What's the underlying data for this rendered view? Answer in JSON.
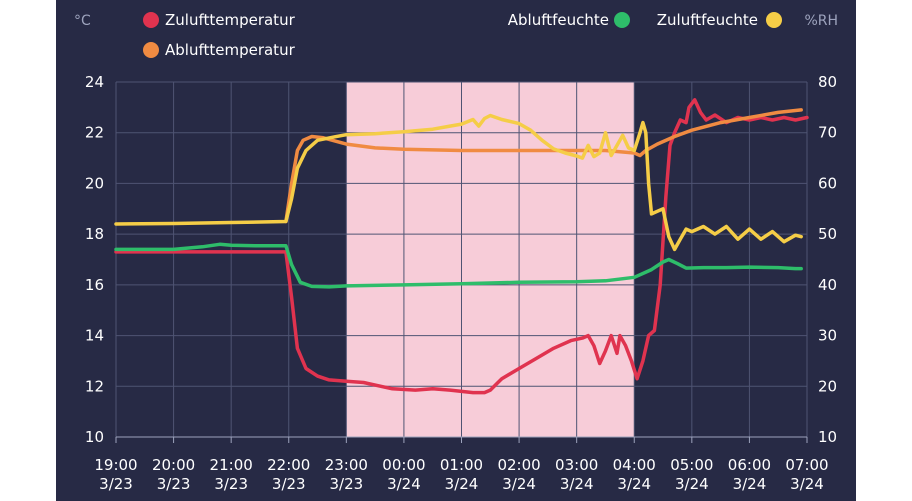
{
  "chart_data": {
    "type": "line",
    "y_left_unit": "°C",
    "y_right_unit": "%RH",
    "y_left_range": [
      10,
      24
    ],
    "y_left_ticks": [
      "10",
      "12",
      "14",
      "16",
      "18",
      "20",
      "22",
      "24"
    ],
    "y_right_range": [
      10,
      80
    ],
    "y_right_ticks": [
      "10",
      "20",
      "30",
      "40",
      "50",
      "60",
      "70",
      "80"
    ],
    "x_range_hours": [
      19,
      31
    ],
    "x_ticks": [
      {
        "time": "19:00",
        "date": "3/23"
      },
      {
        "time": "20:00",
        "date": "3/23"
      },
      {
        "time": "21:00",
        "date": "3/23"
      },
      {
        "time": "22:00",
        "date": "3/23"
      },
      {
        "time": "23:00",
        "date": "3/23"
      },
      {
        "time": "00:00",
        "date": "3/24"
      },
      {
        "time": "01:00",
        "date": "3/24"
      },
      {
        "time": "02:00",
        "date": "3/24"
      },
      {
        "time": "03:00",
        "date": "3/24"
      },
      {
        "time": "04:00",
        "date": "3/24"
      },
      {
        "time": "05:00",
        "date": "3/24"
      },
      {
        "time": "06:00",
        "date": "3/24"
      },
      {
        "time": "07:00",
        "date": "3/24"
      }
    ],
    "grid": true,
    "highlight_band": {
      "from": 23,
      "to": 28,
      "color": "#f7ccd8"
    },
    "series": [
      {
        "name": "Zulufttemperatur",
        "axis": "left",
        "color": "#e0334f",
        "points": [
          [
            19,
            17.3
          ],
          [
            20,
            17.3
          ],
          [
            21,
            17.3
          ],
          [
            21.95,
            17.3
          ],
          [
            22.05,
            15.5
          ],
          [
            22.15,
            13.5
          ],
          [
            22.3,
            12.7
          ],
          [
            22.5,
            12.4
          ],
          [
            22.7,
            12.25
          ],
          [
            23,
            12.2
          ],
          [
            23.3,
            12.15
          ],
          [
            23.6,
            12.0
          ],
          [
            23.8,
            11.9
          ],
          [
            24.2,
            11.85
          ],
          [
            24.5,
            11.9
          ],
          [
            24.8,
            11.85
          ],
          [
            25.0,
            11.8
          ],
          [
            25.2,
            11.75
          ],
          [
            25.4,
            11.75
          ],
          [
            25.5,
            11.85
          ],
          [
            25.7,
            12.3
          ],
          [
            26.0,
            12.7
          ],
          [
            26.3,
            13.1
          ],
          [
            26.6,
            13.5
          ],
          [
            26.9,
            13.8
          ],
          [
            27.1,
            13.9
          ],
          [
            27.2,
            14.0
          ],
          [
            27.3,
            13.6
          ],
          [
            27.4,
            12.9
          ],
          [
            27.5,
            13.4
          ],
          [
            27.6,
            14.0
          ],
          [
            27.7,
            13.3
          ],
          [
            27.75,
            14.0
          ],
          [
            27.85,
            13.6
          ],
          [
            27.95,
            13.0
          ],
          [
            28.05,
            12.3
          ],
          [
            28.15,
            13.0
          ],
          [
            28.25,
            14.0
          ],
          [
            28.35,
            14.2
          ],
          [
            28.45,
            16.0
          ],
          [
            28.55,
            19.5
          ],
          [
            28.62,
            21.5
          ],
          [
            28.7,
            22.0
          ],
          [
            28.8,
            22.5
          ],
          [
            28.9,
            22.4
          ],
          [
            28.95,
            23.0
          ],
          [
            29.05,
            23.3
          ],
          [
            29.15,
            22.8
          ],
          [
            29.25,
            22.5
          ],
          [
            29.4,
            22.7
          ],
          [
            29.6,
            22.4
          ],
          [
            29.8,
            22.6
          ],
          [
            30.0,
            22.5
          ],
          [
            30.2,
            22.6
          ],
          [
            30.4,
            22.5
          ],
          [
            30.6,
            22.6
          ],
          [
            30.8,
            22.5
          ],
          [
            31,
            22.6
          ]
        ]
      },
      {
        "name": "Ablufttemperatur",
        "axis": "left",
        "color": "#f08b42",
        "points": [
          [
            21.95,
            18.5
          ],
          [
            22.05,
            20.0
          ],
          [
            22.15,
            21.3
          ],
          [
            22.25,
            21.7
          ],
          [
            22.4,
            21.85
          ],
          [
            22.6,
            21.8
          ],
          [
            23.0,
            21.55
          ],
          [
            23.5,
            21.4
          ],
          [
            24.0,
            21.35
          ],
          [
            25.0,
            21.3
          ],
          [
            26.0,
            21.3
          ],
          [
            27.0,
            21.3
          ],
          [
            27.5,
            21.3
          ],
          [
            28.0,
            21.2
          ],
          [
            28.1,
            21.1
          ],
          [
            28.2,
            21.3
          ],
          [
            28.4,
            21.55
          ],
          [
            28.7,
            21.85
          ],
          [
            29.0,
            22.1
          ],
          [
            29.5,
            22.4
          ],
          [
            30.0,
            22.6
          ],
          [
            30.5,
            22.8
          ],
          [
            30.9,
            22.9
          ]
        ]
      },
      {
        "name": "Abluftfeuchte",
        "axis": "right",
        "color": "#2ebd6a",
        "points": [
          [
            19,
            47
          ],
          [
            20,
            47
          ],
          [
            20.5,
            47.5
          ],
          [
            20.8,
            48
          ],
          [
            21.0,
            47.8
          ],
          [
            21.5,
            47.7
          ],
          [
            21.95,
            47.7
          ],
          [
            22.05,
            44
          ],
          [
            22.2,
            40.5
          ],
          [
            22.4,
            39.7
          ],
          [
            22.7,
            39.6
          ],
          [
            23.0,
            39.8
          ],
          [
            24.0,
            40.0
          ],
          [
            25.0,
            40.2
          ],
          [
            26.0,
            40.5
          ],
          [
            27.0,
            40.6
          ],
          [
            27.5,
            40.8
          ],
          [
            28.0,
            41.5
          ],
          [
            28.3,
            43
          ],
          [
            28.5,
            44.5
          ],
          [
            28.6,
            45
          ],
          [
            28.75,
            44.2
          ],
          [
            28.9,
            43.3
          ],
          [
            29.2,
            43.4
          ],
          [
            29.6,
            43.4
          ],
          [
            30.0,
            43.5
          ],
          [
            30.5,
            43.4
          ],
          [
            30.8,
            43.2
          ],
          [
            30.9,
            43.2
          ]
        ]
      },
      {
        "name": "Zuluftfeuchte",
        "axis": "right",
        "color": "#f5cd47",
        "points": [
          [
            19,
            52
          ],
          [
            20,
            52.1
          ],
          [
            21,
            52.3
          ],
          [
            21.95,
            52.5
          ],
          [
            22.05,
            57
          ],
          [
            22.15,
            63
          ],
          [
            22.3,
            66.5
          ],
          [
            22.5,
            68.5
          ],
          [
            22.8,
            69.2
          ],
          [
            23.0,
            69.6
          ],
          [
            23.5,
            69.8
          ],
          [
            24.0,
            70.2
          ],
          [
            24.5,
            70.7
          ],
          [
            24.8,
            71.3
          ],
          [
            25.0,
            71.7
          ],
          [
            25.2,
            72.6
          ],
          [
            25.3,
            71.3
          ],
          [
            25.4,
            72.8
          ],
          [
            25.5,
            73.4
          ],
          [
            25.7,
            72.6
          ],
          [
            26.0,
            71.8
          ],
          [
            26.2,
            70.5
          ],
          [
            26.4,
            68.5
          ],
          [
            26.6,
            66.8
          ],
          [
            26.8,
            66.0
          ],
          [
            27.0,
            65.4
          ],
          [
            27.1,
            65.0
          ],
          [
            27.2,
            67.5
          ],
          [
            27.3,
            65.3
          ],
          [
            27.4,
            66.0
          ],
          [
            27.5,
            70.0
          ],
          [
            27.6,
            65.5
          ],
          [
            27.7,
            67.5
          ],
          [
            27.8,
            69.5
          ],
          [
            27.9,
            67.0
          ],
          [
            28.0,
            66.5
          ],
          [
            28.1,
            70.0
          ],
          [
            28.15,
            72.0
          ],
          [
            28.2,
            70.0
          ],
          [
            28.25,
            60.0
          ],
          [
            28.3,
            54.0
          ],
          [
            28.4,
            54.5
          ],
          [
            28.5,
            55.0
          ],
          [
            28.6,
            49.5
          ],
          [
            28.7,
            47.0
          ],
          [
            28.8,
            49.0
          ],
          [
            28.9,
            51.0
          ],
          [
            29.0,
            50.5
          ],
          [
            29.2,
            51.5
          ],
          [
            29.4,
            50.0
          ],
          [
            29.6,
            51.5
          ],
          [
            29.8,
            49.0
          ],
          [
            30.0,
            51.0
          ],
          [
            30.2,
            49.0
          ],
          [
            30.4,
            50.5
          ],
          [
            30.6,
            48.5
          ],
          [
            30.8,
            49.8
          ],
          [
            30.9,
            49.5
          ]
        ]
      }
    ]
  },
  "legend": {
    "left": [
      "Zulufttemperatur",
      "Ablufttemperatur"
    ],
    "right": [
      "Abluftfeuchte",
      "Zuluftfeuchte"
    ]
  }
}
